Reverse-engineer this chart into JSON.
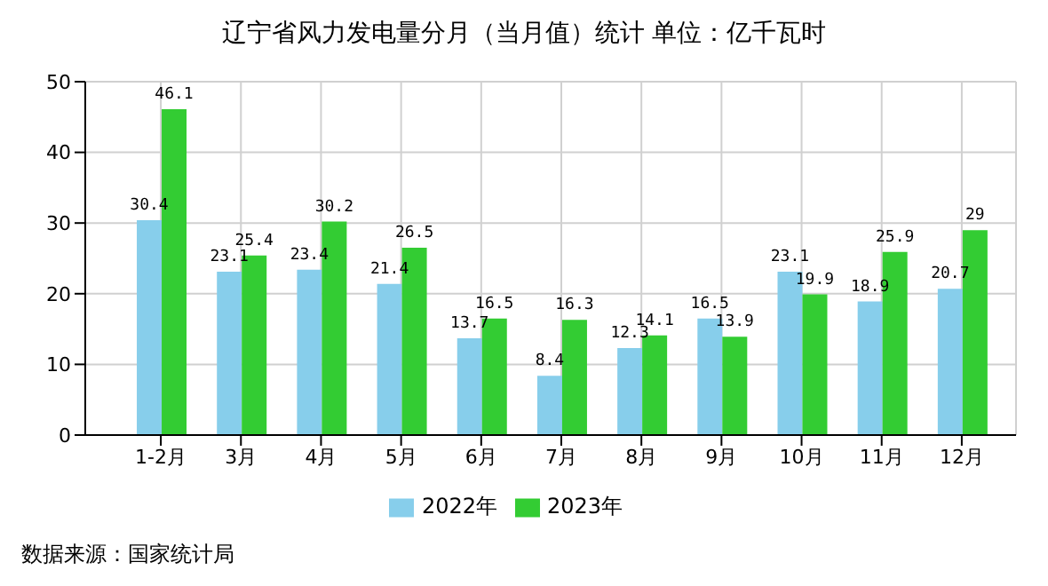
{
  "chart_data": {
    "type": "bar",
    "title": "辽宁省风力发电量分月（当月值）统计 单位：亿千瓦时",
    "categories": [
      "1-2月",
      "3月",
      "4月",
      "5月",
      "6月",
      "7月",
      "8月",
      "9月",
      "10月",
      "11月",
      "12月"
    ],
    "series": [
      {
        "name": "2022年",
        "color": "#87ceeb",
        "values": [
          30.4,
          23.1,
          23.4,
          21.4,
          13.7,
          8.4,
          12.3,
          16.5,
          23.1,
          18.9,
          20.7
        ]
      },
      {
        "name": "2023年",
        "color": "#33cc33",
        "values": [
          46.1,
          25.4,
          30.2,
          26.5,
          16.5,
          16.3,
          14.1,
          13.9,
          19.9,
          25.9,
          29
        ]
      }
    ],
    "ylim": [
      0,
      50
    ],
    "yticks": [
      0,
      10,
      20,
      30,
      40,
      50
    ],
    "grid": true,
    "legend": "bottom",
    "data_labels": true,
    "annotations": [
      "数据来源：国家统计局"
    ]
  }
}
